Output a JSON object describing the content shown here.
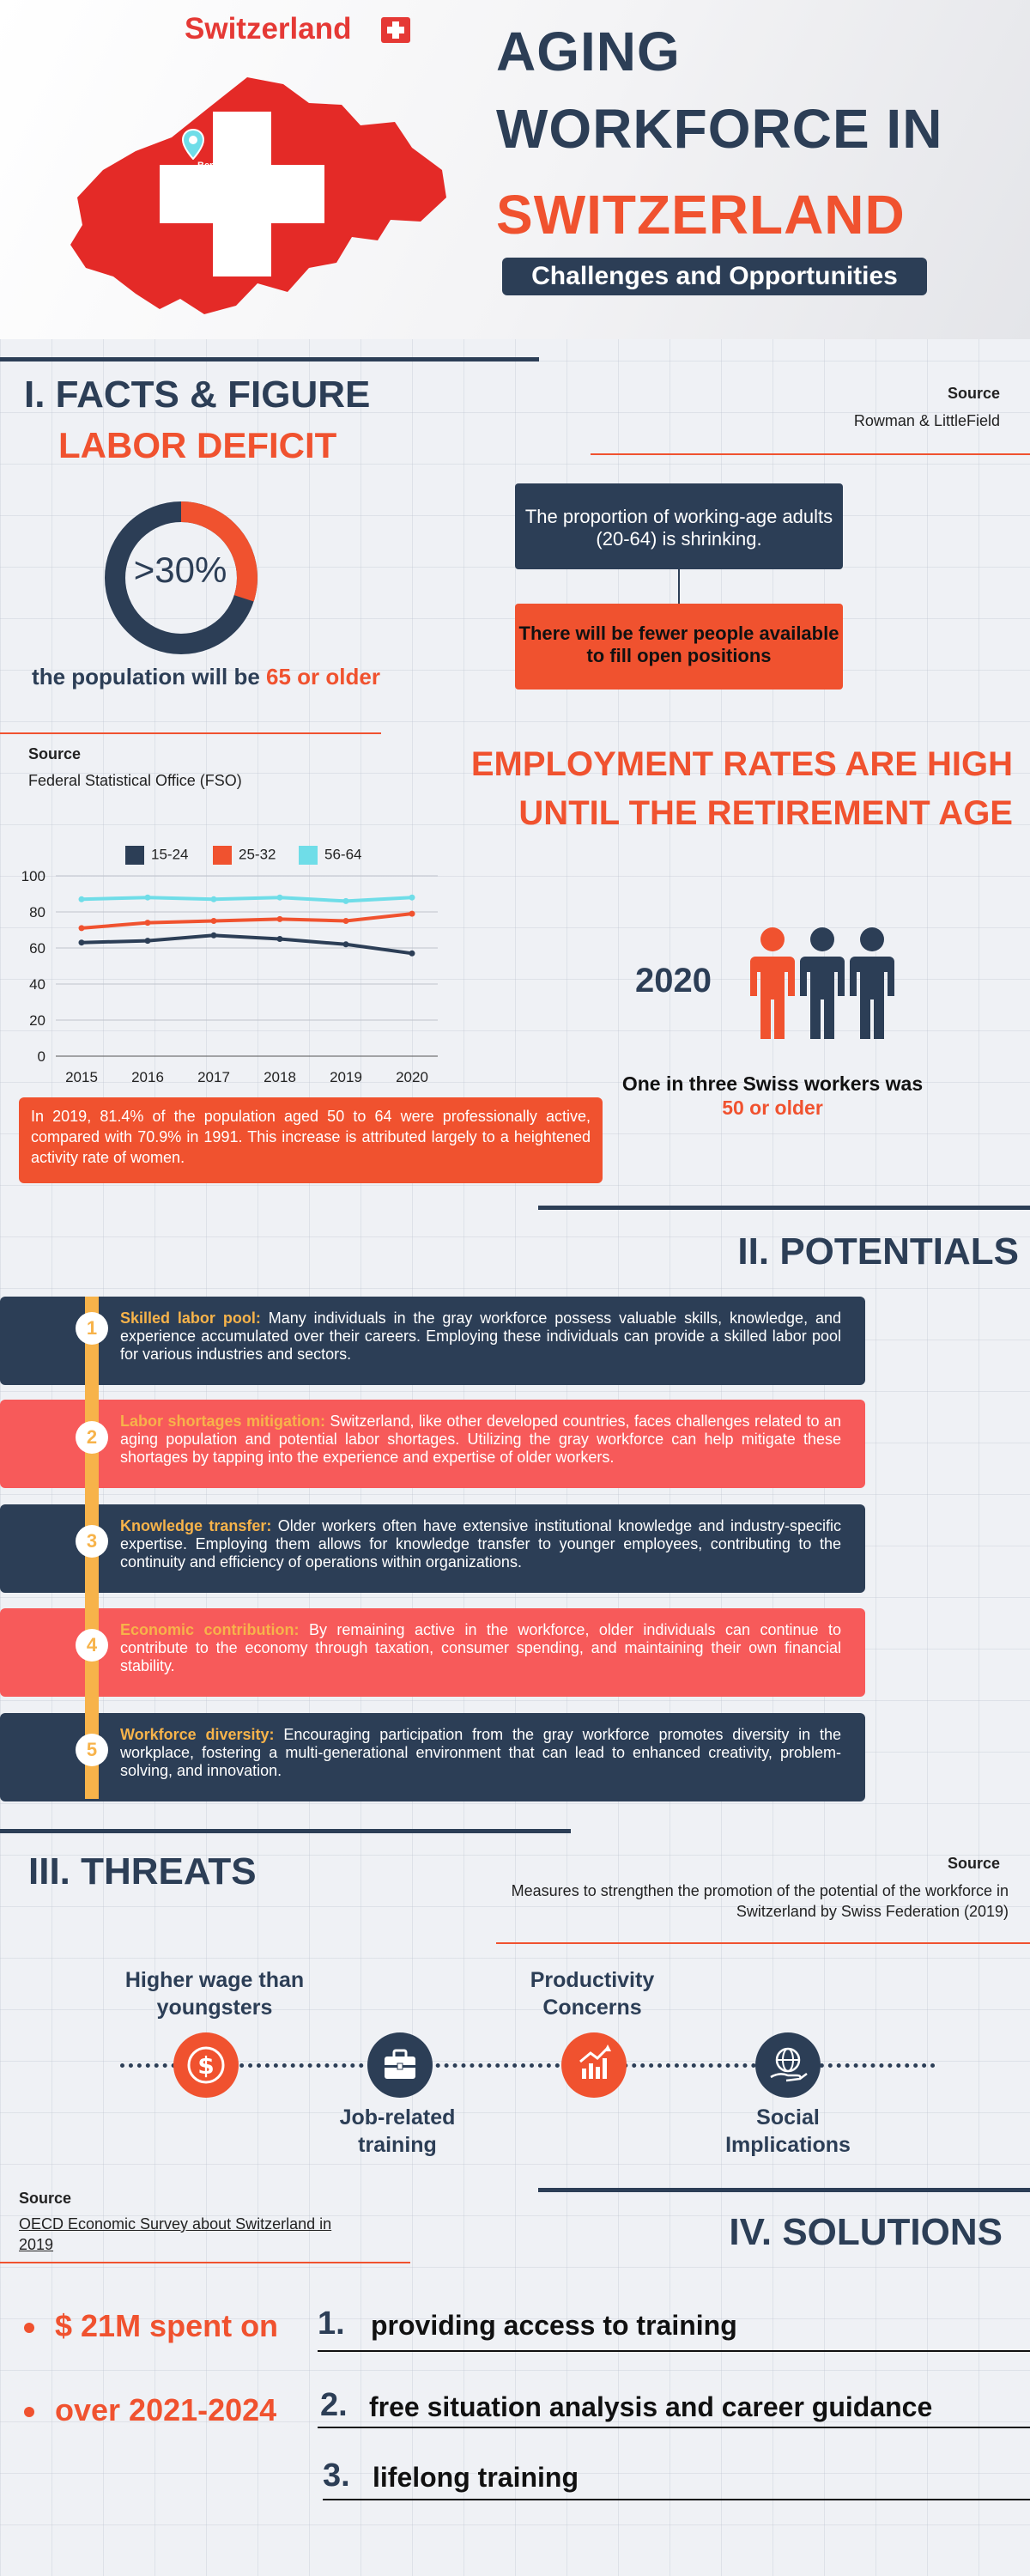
{
  "header": {
    "country": "Switzerland",
    "map_city": "Bern",
    "title_lines": [
      "AGING",
      "WORKFORCE IN",
      "SWITZERLAND"
    ],
    "subtitle": "Challenges and Opportunities"
  },
  "facts": {
    "section_title": "I. FACTS & FIGURE",
    "subtitle": "LABOR DEFICIT",
    "source_head": "Source",
    "source_body": "Rowman & LittleField",
    "donut_value": ">30%",
    "donut_fraction": 0.3,
    "donut_caption_prefix": "the population will be ",
    "donut_caption_highlight": "65 or older",
    "box_top": "The proportion of working-age adults (20-64) is shrinking.",
    "box_bottom": "There will be fewer people available to fill open positions"
  },
  "employment": {
    "title_line1": "EMPLOYMENT RATES ARE HIGH",
    "title_line2": "UNTIL THE RETIREMENT AGE",
    "source_head": "Source",
    "source_body": "Federal Statistical Office (FSO)",
    "note": "In 2019, 81.4% of the population aged 50 to 64 were professionally active, compared with 70.9% in 1991. This increase is attributed largely to a heightened activity rate of women.",
    "year": "2020",
    "one_in_three": "One in three Swiss  workers  was",
    "one_in_three_highlight": "50 or older"
  },
  "chart_data": {
    "type": "line",
    "x": [
      "2015",
      "2016",
      "2017",
      "2018",
      "2019",
      "2020"
    ],
    "ylim": [
      0,
      100
    ],
    "yticks": [
      "0",
      "20",
      "40",
      "60",
      "80",
      "100"
    ],
    "grid": true,
    "legend": "top",
    "series": [
      {
        "name": "15-24",
        "color": "#2c3e56",
        "values": [
          63,
          64,
          67,
          65,
          62,
          57
        ]
      },
      {
        "name": "25-32",
        "color": "#f0522f",
        "values": [
          71,
          74,
          75,
          76,
          75,
          79
        ]
      },
      {
        "name": "56-64",
        "color": "#6fdde8",
        "values": [
          87,
          88,
          87,
          88,
          86,
          88
        ]
      }
    ]
  },
  "potentials": {
    "section_title": "II. POTENTIALS",
    "items": [
      {
        "num": "1",
        "title": "Skilled labor pool:",
        "text": " Many individuals in the gray workforce possess valuable skills, knowledge, and experience accumulated over their careers. Employing these individuals can provide a skilled labor pool for various industries and sectors."
      },
      {
        "num": "2",
        "title": "Labor shortages mitigation:",
        "text": " Switzerland, like other developed countries, faces challenges related to an aging population and potential labor shortages. Utilizing the gray workforce can help mitigate these shortages by tapping into the experience and expertise of older workers."
      },
      {
        "num": "3",
        "title": "Knowledge transfer:",
        "text": " Older workers often have extensive institutional knowledge and industry-specific expertise. Employing them allows for knowledge transfer to younger employees, contributing to the continuity and efficiency of operations within organizations."
      },
      {
        "num": "4",
        "title": "Economic contribution:",
        "text": " By remaining active in the workforce, older individuals can continue to contribute to the economy through taxation, consumer spending, and maintaining their own financial stability."
      },
      {
        "num": "5",
        "title": "Workforce diversity:",
        "text": " Encouraging participation from the gray workforce promotes diversity in the workplace, fostering a multi-generational environment that can lead to enhanced creativity, problem-solving, and innovation."
      }
    ]
  },
  "threats": {
    "section_title": "III. THREATS",
    "source_head": "Source",
    "source_body": "Measures to strengthen the promotion of the potential of the workforce in Switzerland by Swiss Federation (2019)",
    "items": [
      {
        "label": "Higher wage than youngsters",
        "icon": "dollar-icon",
        "color": "#f0522f"
      },
      {
        "label": "Job-related training",
        "icon": "briefcase-icon",
        "color": "#2c3e56"
      },
      {
        "label": "Productivity Concerns",
        "icon": "growth-chart-icon",
        "color": "#f0522f"
      },
      {
        "label": "Social Implications",
        "icon": "globe-hand-icon",
        "color": "#2c3e56"
      }
    ]
  },
  "solutions": {
    "section_title": "IV. SOLUTIONS",
    "source_head": "Source",
    "source_body": "OECD Economic Survey about Switzerland in 2019",
    "bullets": [
      "$ 21M spent on",
      "over 2021-2024"
    ],
    "items": [
      {
        "num": "1.",
        "text": "providing access to training"
      },
      {
        "num": "2.",
        "text": "free situation analysis and career guidance"
      },
      {
        "num": "3.",
        "text": "lifelong training"
      }
    ]
  }
}
